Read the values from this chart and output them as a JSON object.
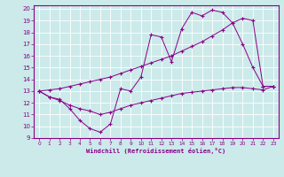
{
  "xlabel": "Windchill (Refroidissement éolien,°C)",
  "xlim_min": -0.5,
  "xlim_max": 23.5,
  "ylim_min": 9,
  "ylim_max": 20.3,
  "yticks": [
    9,
    10,
    11,
    12,
    13,
    14,
    15,
    16,
    17,
    18,
    19,
    20
  ],
  "xticks": [
    0,
    1,
    2,
    3,
    4,
    5,
    6,
    7,
    8,
    9,
    10,
    11,
    12,
    13,
    14,
    15,
    16,
    17,
    18,
    19,
    20,
    21,
    22,
    23
  ],
  "line_color": "#880088",
  "bg_color": "#cceaea",
  "grid_color": "#aad4d4",
  "line1_x": [
    0,
    1,
    2,
    3,
    4,
    5,
    6,
    7,
    8,
    9,
    10,
    11,
    12,
    13,
    14,
    15,
    16,
    17,
    18,
    19,
    20,
    21,
    22,
    23
  ],
  "line1_y": [
    13.0,
    12.5,
    12.3,
    11.5,
    10.5,
    9.8,
    9.5,
    10.2,
    13.2,
    13.0,
    14.2,
    17.8,
    17.6,
    15.5,
    18.3,
    19.7,
    19.4,
    19.9,
    19.7,
    18.8,
    17.0,
    15.0,
    13.4,
    13.4
  ],
  "line2_x": [
    0,
    1,
    2,
    3,
    4,
    5,
    6,
    7,
    8,
    9,
    10,
    11,
    12,
    13,
    14,
    15,
    16,
    17,
    18,
    19,
    20,
    21,
    22,
    23
  ],
  "line2_y": [
    13.0,
    13.1,
    13.2,
    13.4,
    13.6,
    13.8,
    14.0,
    14.2,
    14.5,
    14.8,
    15.1,
    15.4,
    15.7,
    16.0,
    16.4,
    16.8,
    17.2,
    17.7,
    18.2,
    18.8,
    19.2,
    19.0,
    13.4,
    13.4
  ],
  "line3_x": [
    0,
    1,
    2,
    3,
    4,
    5,
    6,
    7,
    8,
    9,
    10,
    11,
    12,
    13,
    14,
    15,
    16,
    17,
    18,
    19,
    20,
    21,
    22,
    23
  ],
  "line3_y": [
    13.0,
    12.5,
    12.2,
    11.8,
    11.5,
    11.3,
    11.0,
    11.2,
    11.5,
    11.8,
    12.0,
    12.2,
    12.4,
    12.6,
    12.8,
    12.9,
    13.0,
    13.1,
    13.2,
    13.3,
    13.3,
    13.2,
    13.1,
    13.4
  ]
}
